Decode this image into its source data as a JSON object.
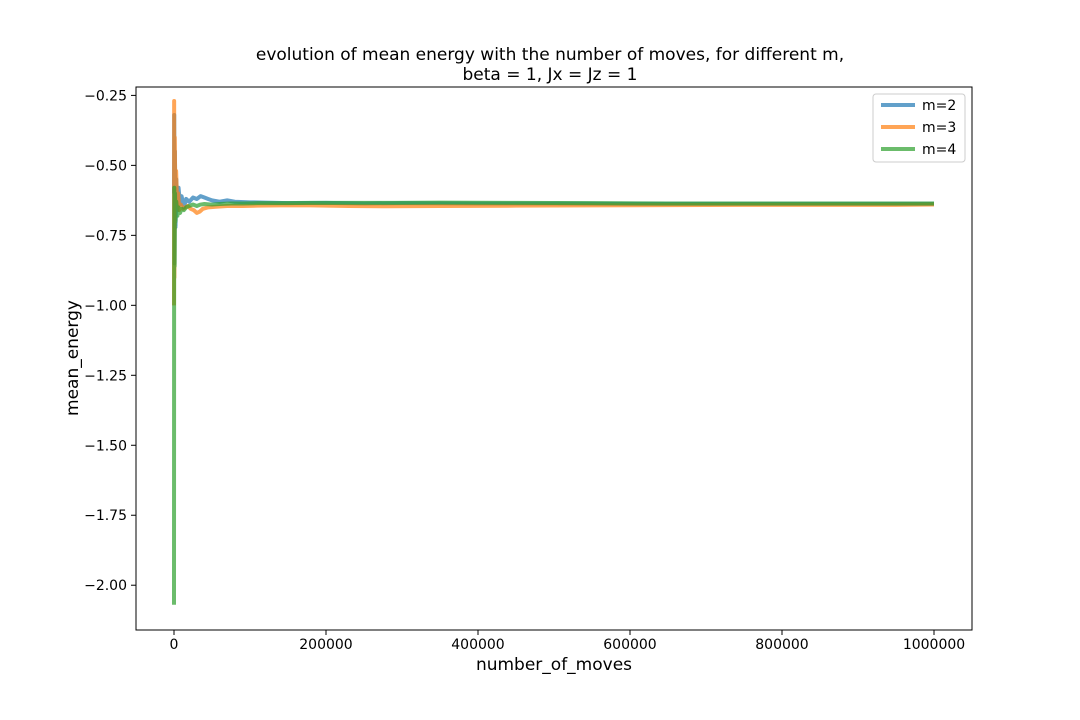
{
  "chart_data": {
    "type": "line",
    "title_line1": "evolution of mean energy with the number of moves, for different m,",
    "title_line2": "beta = 1, Jx = Jz = 1",
    "xlabel": "number_of_moves",
    "ylabel": "mean_energy",
    "xlim": [
      -50000,
      1050000
    ],
    "ylim": [
      -2.16,
      -0.22
    ],
    "xticks": [
      0,
      200000,
      400000,
      600000,
      800000,
      1000000
    ],
    "xtick_labels": [
      "0",
      "200000",
      "400000",
      "600000",
      "800000",
      "1000000"
    ],
    "yticks": [
      -2.0,
      -1.75,
      -1.5,
      -1.25,
      -1.0,
      -0.75,
      -0.5,
      -0.25
    ],
    "ytick_labels": [
      "−2.00",
      "−1.75",
      "−1.50",
      "−1.25",
      "−1.00",
      "−0.75",
      "−0.50",
      "−0.25"
    ],
    "grid": false,
    "legend_position": "top-right",
    "series": [
      {
        "name": "m=2",
        "color": "#1f77b4",
        "points": [
          [
            0,
            -0.6
          ],
          [
            300,
            -0.32
          ],
          [
            700,
            -0.85
          ],
          [
            1200,
            -0.45
          ],
          [
            2000,
            -0.72
          ],
          [
            3000,
            -0.55
          ],
          [
            4500,
            -0.66
          ],
          [
            6000,
            -0.58
          ],
          [
            8000,
            -0.64
          ],
          [
            10000,
            -0.61
          ],
          [
            13000,
            -0.65
          ],
          [
            16000,
            -0.62
          ],
          [
            20000,
            -0.63
          ],
          [
            25000,
            -0.615
          ],
          [
            30000,
            -0.62
          ],
          [
            35000,
            -0.61
          ],
          [
            40000,
            -0.615
          ],
          [
            45000,
            -0.62
          ],
          [
            50000,
            -0.625
          ],
          [
            60000,
            -0.63
          ],
          [
            70000,
            -0.625
          ],
          [
            80000,
            -0.63
          ],
          [
            100000,
            -0.632
          ],
          [
            120000,
            -0.633
          ],
          [
            150000,
            -0.635
          ],
          [
            200000,
            -0.634
          ],
          [
            250000,
            -0.636
          ],
          [
            300000,
            -0.635
          ],
          [
            400000,
            -0.636
          ],
          [
            500000,
            -0.636
          ],
          [
            600000,
            -0.637
          ],
          [
            700000,
            -0.637
          ],
          [
            800000,
            -0.637
          ],
          [
            900000,
            -0.637
          ],
          [
            1000000,
            -0.637
          ]
        ]
      },
      {
        "name": "m=3",
        "color": "#ff7f0e",
        "points": [
          [
            0,
            -1.0
          ],
          [
            200,
            -0.27
          ],
          [
            500,
            -0.9
          ],
          [
            1000,
            -0.4
          ],
          [
            1800,
            -0.62
          ],
          [
            2800,
            -0.52
          ],
          [
            4000,
            -0.63
          ],
          [
            5500,
            -0.6
          ],
          [
            7000,
            -0.66
          ],
          [
            9000,
            -0.64
          ],
          [
            12000,
            -0.655
          ],
          [
            15000,
            -0.65
          ],
          [
            18000,
            -0.645
          ],
          [
            22000,
            -0.655
          ],
          [
            26000,
            -0.66
          ],
          [
            30000,
            -0.67
          ],
          [
            34000,
            -0.665
          ],
          [
            38000,
            -0.655
          ],
          [
            45000,
            -0.65
          ],
          [
            55000,
            -0.648
          ],
          [
            70000,
            -0.645
          ],
          [
            90000,
            -0.645
          ],
          [
            110000,
            -0.644
          ],
          [
            140000,
            -0.643
          ],
          [
            180000,
            -0.643
          ],
          [
            230000,
            -0.645
          ],
          [
            280000,
            -0.646
          ],
          [
            350000,
            -0.645
          ],
          [
            450000,
            -0.644
          ],
          [
            550000,
            -0.643
          ],
          [
            650000,
            -0.642
          ],
          [
            750000,
            -0.641
          ],
          [
            850000,
            -0.641
          ],
          [
            950000,
            -0.641
          ],
          [
            1000000,
            -0.64
          ]
        ]
      },
      {
        "name": "m=4",
        "color": "#2ca02c",
        "points": [
          [
            0,
            -2.07
          ],
          [
            150,
            -1.0
          ],
          [
            400,
            -0.58
          ],
          [
            800,
            -0.86
          ],
          [
            1300,
            -0.6
          ],
          [
            2000,
            -0.7
          ],
          [
            3000,
            -0.63
          ],
          [
            4500,
            -0.68
          ],
          [
            6000,
            -0.65
          ],
          [
            8000,
            -0.67
          ],
          [
            10000,
            -0.655
          ],
          [
            13000,
            -0.66
          ],
          [
            16000,
            -0.65
          ],
          [
            20000,
            -0.645
          ],
          [
            25000,
            -0.64
          ],
          [
            30000,
            -0.645
          ],
          [
            35000,
            -0.64
          ],
          [
            40000,
            -0.638
          ],
          [
            50000,
            -0.64
          ],
          [
            60000,
            -0.638
          ],
          [
            75000,
            -0.636
          ],
          [
            90000,
            -0.636
          ],
          [
            110000,
            -0.635
          ],
          [
            140000,
            -0.635
          ],
          [
            180000,
            -0.634
          ],
          [
            230000,
            -0.634
          ],
          [
            290000,
            -0.634
          ],
          [
            350000,
            -0.633
          ],
          [
            450000,
            -0.634
          ],
          [
            550000,
            -0.635
          ],
          [
            650000,
            -0.636
          ],
          [
            750000,
            -0.636
          ],
          [
            850000,
            -0.636
          ],
          [
            950000,
            -0.636
          ],
          [
            1000000,
            -0.636
          ]
        ]
      }
    ]
  }
}
